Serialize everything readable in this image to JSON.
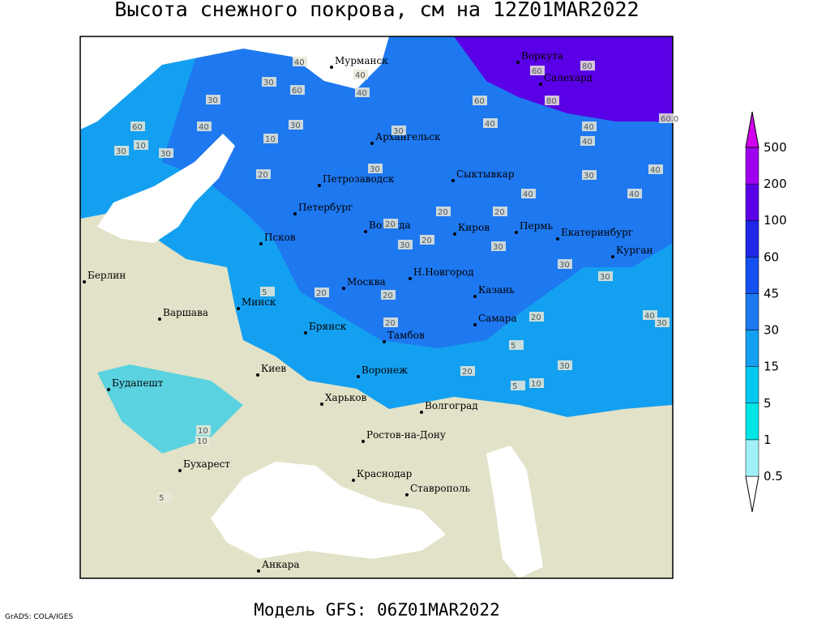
{
  "title": "Высота снежного покрова, см на 12Z01MAR2022",
  "model": "Модель GFS: 06Z01MAR2022",
  "credit": "GrADS: COLA/IGES",
  "legend": {
    "levels": [
      0.5,
      1,
      5,
      15,
      30,
      45,
      60,
      100,
      200,
      500
    ],
    "colors": [
      "#ffffff",
      "#a0f0f8",
      "#00e6e6",
      "#00c8f0",
      "#14a0f0",
      "#1e78f0",
      "#1450f0",
      "#1e28e6",
      "#5a00e6",
      "#a000f0",
      "#d200f0"
    ]
  },
  "cities": [
    "Мурманск",
    "Воркута",
    "Салехард",
    "Архангельск",
    "Сыктывкар",
    "Петрозаводск",
    "Петербург",
    "Вологда",
    "Киров",
    "Пермь",
    "Екатеринбург",
    "Курган",
    "Псков",
    "Н.Новгород",
    "Казань",
    "Москва",
    "Берлин",
    "Минск",
    "Варшава",
    "Брянск",
    "Тамбов",
    "Самара",
    "Киев",
    "Воронеж",
    "Будапешт",
    "Харьков",
    "Волгоград",
    "Ростов-на-Дону",
    "Бухарест",
    "Краснодар",
    "Ставрополь",
    "Анкара"
  ],
  "contour_labels": [
    "40",
    "40",
    "80",
    "60",
    "80",
    "60",
    "60",
    "60.0",
    "40",
    "40",
    "30",
    "30",
    "30",
    "60",
    "40",
    "40",
    "30",
    "10",
    "30",
    "10",
    "40",
    "30",
    "30",
    "40",
    "40",
    "30",
    "20",
    "40",
    "30",
    "20",
    "20",
    "30",
    "5",
    "20",
    "20",
    "30",
    "30",
    "40",
    "30",
    "20",
    "20",
    "20",
    "5",
    "10",
    "20",
    "10",
    "10",
    "5",
    "5",
    "20",
    "30"
  ]
}
